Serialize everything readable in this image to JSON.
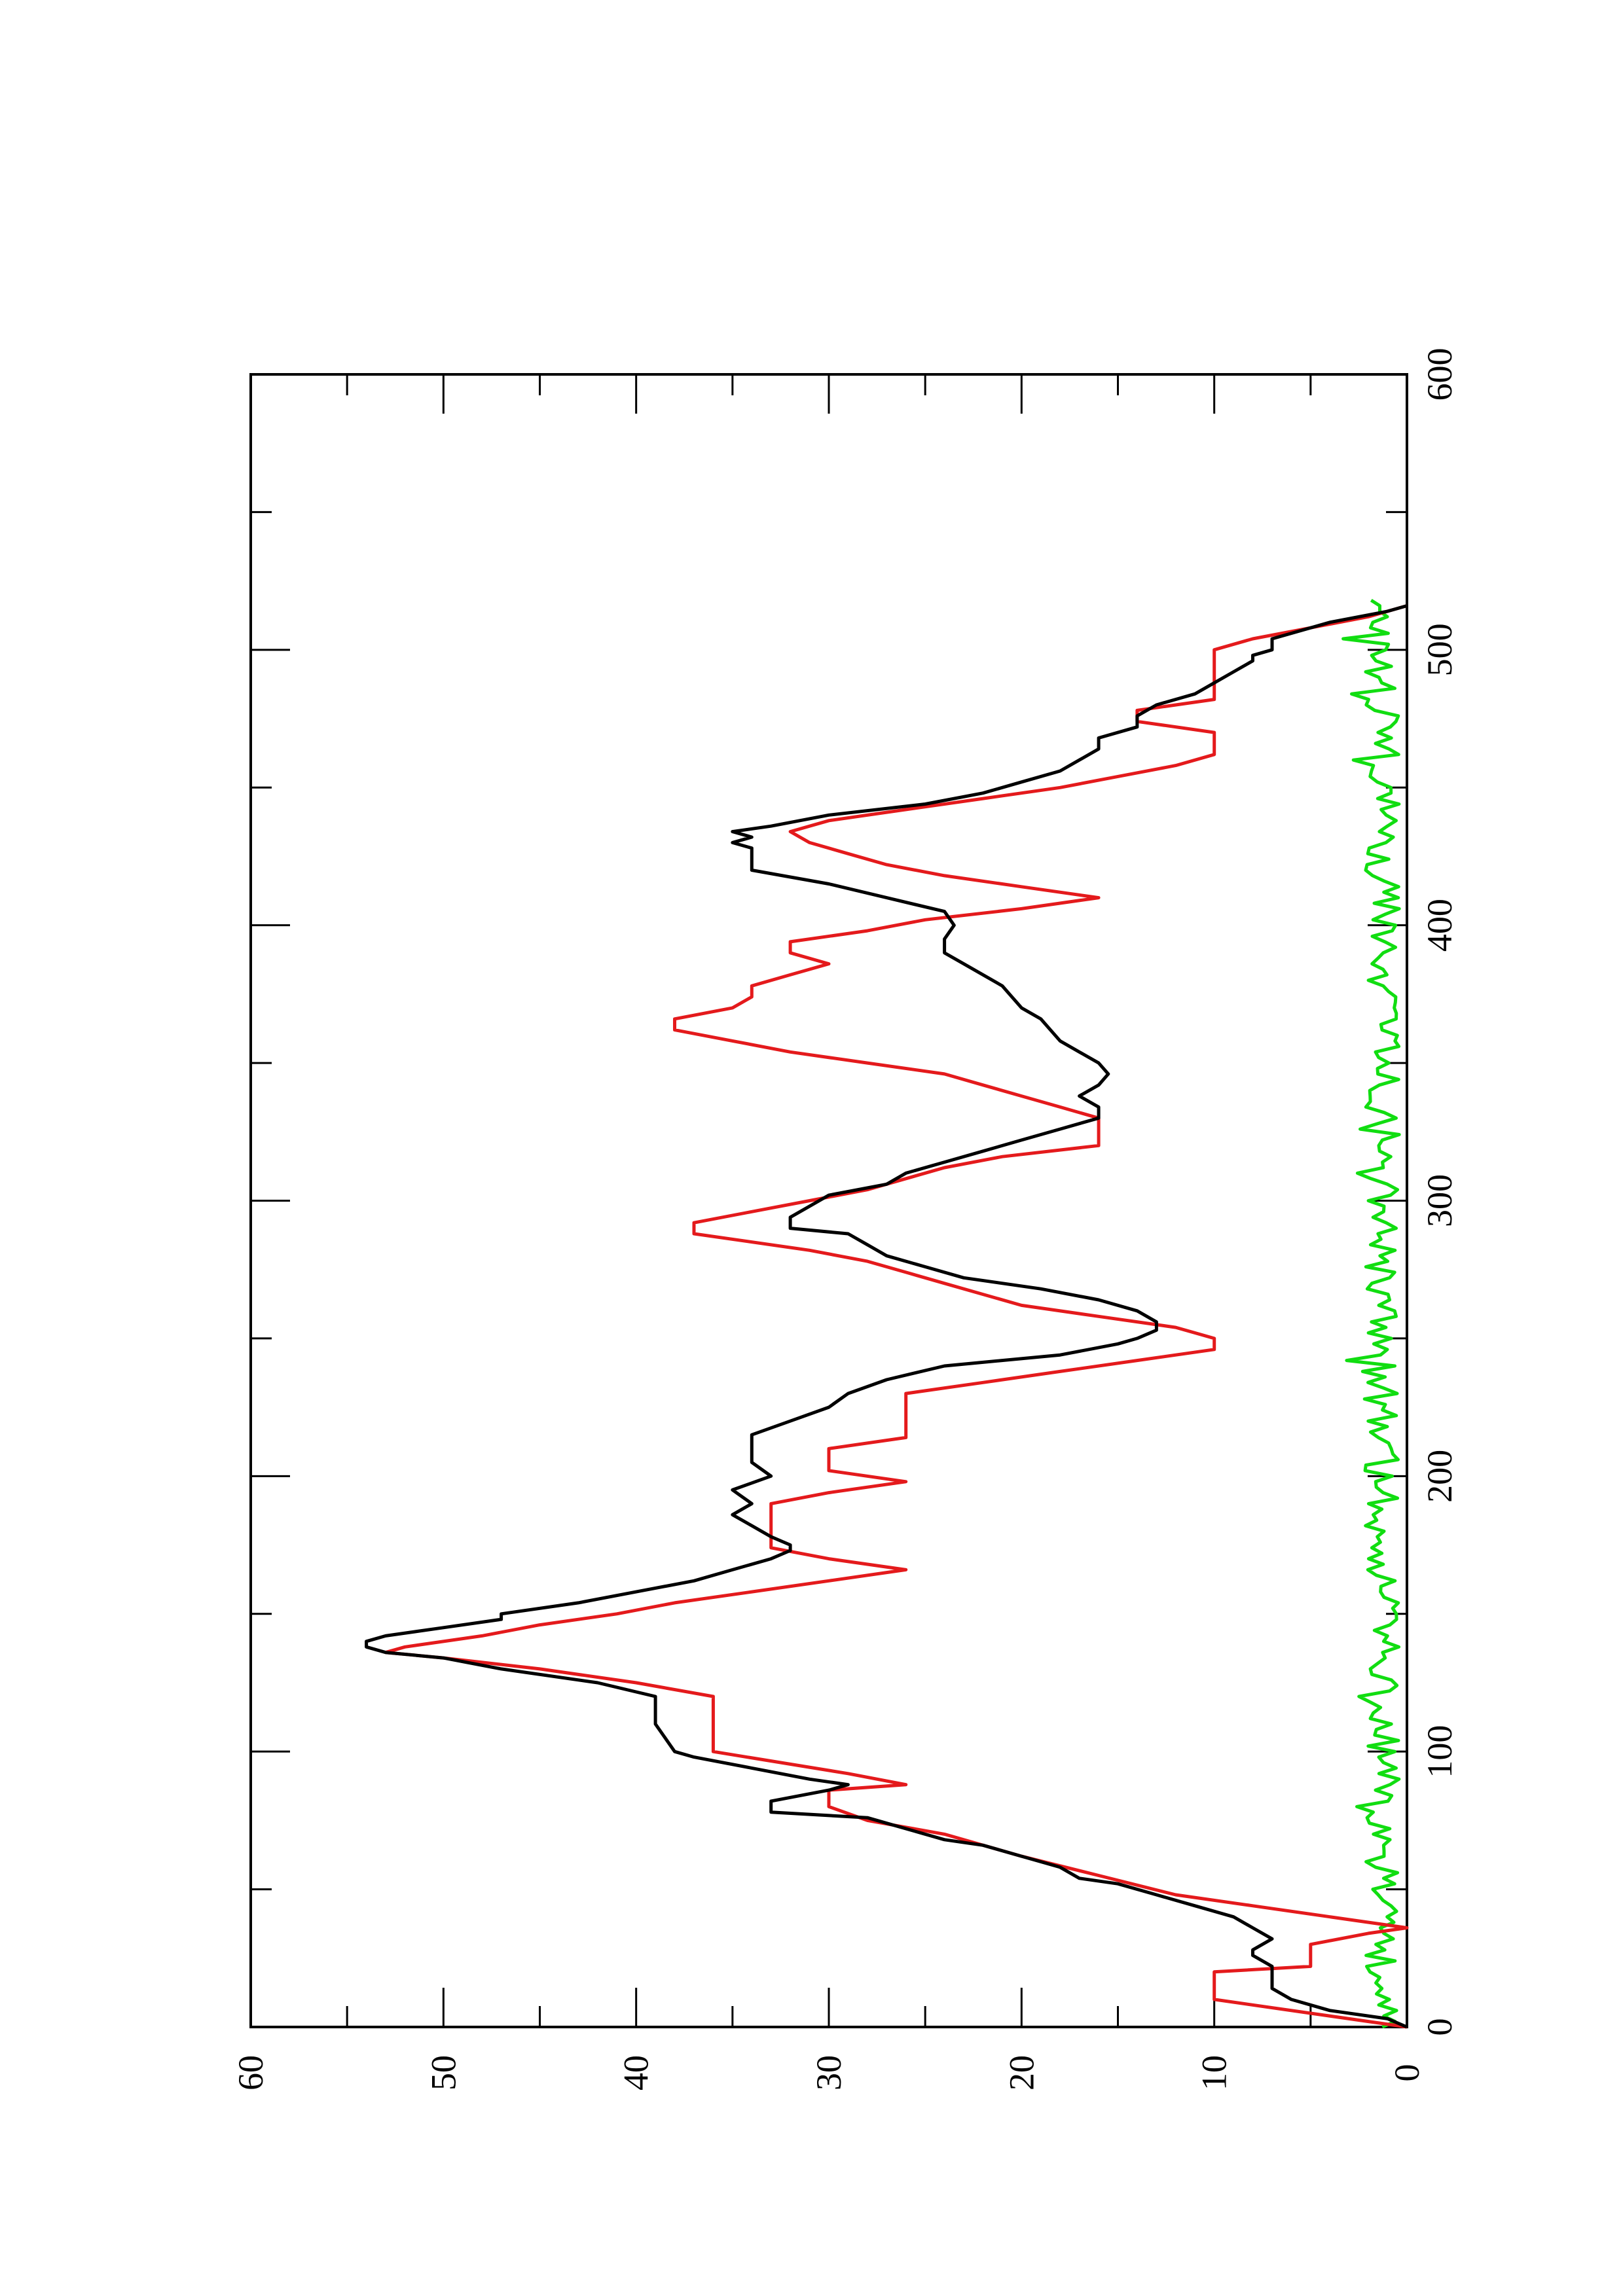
{
  "chart_data": {
    "type": "line",
    "orientation": "rotated-90-ccw",
    "xlabel": "",
    "ylabel": "",
    "xlim": [
      0,
      600
    ],
    "ylim": [
      0,
      60
    ],
    "x_ticks": [
      0,
      100,
      200,
      300,
      400,
      500,
      600
    ],
    "y_ticks": [
      0,
      10,
      20,
      30,
      40,
      50,
      60
    ],
    "grid": false,
    "legend": "none",
    "series": [
      {
        "color": "#000000",
        "points": [
          [
            0,
            0
          ],
          [
            3,
            1
          ],
          [
            6,
            4
          ],
          [
            10,
            6
          ],
          [
            14,
            7
          ],
          [
            18,
            7
          ],
          [
            22,
            7
          ],
          [
            26,
            8
          ],
          [
            28,
            8
          ],
          [
            32,
            7
          ],
          [
            36,
            8
          ],
          [
            40,
            9
          ],
          [
            44,
            11
          ],
          [
            48,
            13
          ],
          [
            52,
            15
          ],
          [
            54,
            17
          ],
          [
            58,
            18
          ],
          [
            62,
            20
          ],
          [
            66,
            22
          ],
          [
            68,
            24
          ],
          [
            72,
            26
          ],
          [
            76,
            28
          ],
          [
            78,
            33
          ],
          [
            82,
            33
          ],
          [
            86,
            30
          ],
          [
            88,
            29
          ],
          [
            90,
            31
          ],
          [
            94,
            34
          ],
          [
            98,
            37
          ],
          [
            100,
            38
          ],
          [
            105,
            38.5
          ],
          [
            110,
            39
          ],
          [
            115,
            39
          ],
          [
            120,
            39
          ],
          [
            125,
            42
          ],
          [
            130,
            47
          ],
          [
            134,
            50
          ],
          [
            136,
            53
          ],
          [
            138,
            54
          ],
          [
            140,
            54
          ],
          [
            142,
            53
          ],
          [
            145,
            50
          ],
          [
            148,
            47
          ],
          [
            150,
            47
          ],
          [
            154,
            43
          ],
          [
            158,
            40
          ],
          [
            162,
            37
          ],
          [
            166,
            35
          ],
          [
            170,
            33
          ],
          [
            173,
            32
          ],
          [
            175,
            32
          ],
          [
            178,
            33
          ],
          [
            182,
            34
          ],
          [
            186,
            35
          ],
          [
            190,
            34
          ],
          [
            195,
            35
          ],
          [
            200,
            33
          ],
          [
            205,
            34
          ],
          [
            210,
            34
          ],
          [
            215,
            34
          ],
          [
            220,
            32
          ],
          [
            225,
            30
          ],
          [
            230,
            29
          ],
          [
            235,
            27
          ],
          [
            240,
            24
          ],
          [
            244,
            18
          ],
          [
            248,
            15
          ],
          [
            250,
            14
          ],
          [
            253,
            13
          ],
          [
            256,
            13
          ],
          [
            260,
            14
          ],
          [
            264,
            16
          ],
          [
            268,
            19
          ],
          [
            272,
            23
          ],
          [
            276,
            25
          ],
          [
            280,
            27
          ],
          [
            284,
            28
          ],
          [
            288,
            29
          ],
          [
            290,
            32
          ],
          [
            294,
            32
          ],
          [
            298,
            31
          ],
          [
            302,
            30
          ],
          [
            306,
            27
          ],
          [
            310,
            26
          ],
          [
            314,
            24
          ],
          [
            318,
            22
          ],
          [
            322,
            20
          ],
          [
            326,
            18
          ],
          [
            330,
            16
          ],
          [
            334,
            16
          ],
          [
            338,
            17
          ],
          [
            342,
            16
          ],
          [
            346,
            15.5
          ],
          [
            350,
            16
          ],
          [
            354,
            17
          ],
          [
            358,
            18
          ],
          [
            362,
            18.5
          ],
          [
            366,
            19
          ],
          [
            370,
            20
          ],
          [
            374,
            20.5
          ],
          [
            378,
            21
          ],
          [
            382,
            22
          ],
          [
            386,
            23
          ],
          [
            390,
            24
          ],
          [
            395,
            24
          ],
          [
            400,
            23.5
          ],
          [
            405,
            24
          ],
          [
            410,
            27
          ],
          [
            415,
            30
          ],
          [
            420,
            34
          ],
          [
            424,
            34
          ],
          [
            428,
            34
          ],
          [
            430,
            35
          ],
          [
            432,
            34
          ],
          [
            434,
            35
          ],
          [
            436,
            33
          ],
          [
            440,
            30
          ],
          [
            444,
            25
          ],
          [
            448,
            22
          ],
          [
            452,
            20
          ],
          [
            456,
            18
          ],
          [
            460,
            17
          ],
          [
            464,
            16
          ],
          [
            468,
            16
          ],
          [
            472,
            14
          ],
          [
            476,
            14
          ],
          [
            480,
            13
          ],
          [
            484,
            11
          ],
          [
            488,
            10
          ],
          [
            492,
            9
          ],
          [
            496,
            8
          ],
          [
            498,
            8
          ],
          [
            500,
            7
          ],
          [
            504,
            7
          ],
          [
            506,
            6
          ],
          [
            510,
            4
          ],
          [
            514,
            1
          ],
          [
            516,
            0
          ]
        ]
      },
      {
        "color": "#e41a1c",
        "points": [
          [
            0,
            0
          ],
          [
            5,
            5
          ],
          [
            10,
            10
          ],
          [
            20,
            10
          ],
          [
            22,
            5
          ],
          [
            30,
            5
          ],
          [
            34,
            2
          ],
          [
            36,
            0
          ],
          [
            40,
            4
          ],
          [
            44,
            8
          ],
          [
            48,
            12
          ],
          [
            55,
            16
          ],
          [
            62,
            20
          ],
          [
            70,
            24
          ],
          [
            75,
            28
          ],
          [
            80,
            30
          ],
          [
            86,
            30
          ],
          [
            88,
            26
          ],
          [
            92,
            29
          ],
          [
            100,
            36
          ],
          [
            120,
            36
          ],
          [
            125,
            40
          ],
          [
            130,
            45
          ],
          [
            134,
            50
          ],
          [
            136,
            53
          ],
          [
            138,
            52
          ],
          [
            142,
            48
          ],
          [
            146,
            45
          ],
          [
            150,
            41
          ],
          [
            154,
            38
          ],
          [
            158,
            34
          ],
          [
            162,
            30
          ],
          [
            166,
            26
          ],
          [
            170,
            30
          ],
          [
            174,
            33
          ],
          [
            190,
            33
          ],
          [
            194,
            30
          ],
          [
            198,
            26
          ],
          [
            202,
            30
          ],
          [
            210,
            30
          ],
          [
            214,
            26
          ],
          [
            230,
            26
          ],
          [
            234,
            22
          ],
          [
            238,
            18
          ],
          [
            242,
            14
          ],
          [
            246,
            10
          ],
          [
            250,
            10
          ],
          [
            254,
            12
          ],
          [
            258,
            16
          ],
          [
            262,
            20
          ],
          [
            266,
            22
          ],
          [
            270,
            24
          ],
          [
            274,
            26
          ],
          [
            278,
            28
          ],
          [
            282,
            31
          ],
          [
            288,
            37
          ],
          [
            292,
            37
          ],
          [
            296,
            34
          ],
          [
            300,
            31
          ],
          [
            304,
            28
          ],
          [
            308,
            26
          ],
          [
            312,
            24
          ],
          [
            316,
            21
          ],
          [
            320,
            16
          ],
          [
            330,
            16
          ],
          [
            334,
            18
          ],
          [
            338,
            20
          ],
          [
            342,
            22
          ],
          [
            346,
            24
          ],
          [
            350,
            28
          ],
          [
            354,
            32
          ],
          [
            358,
            35
          ],
          [
            362,
            38
          ],
          [
            366,
            38
          ],
          [
            370,
            35
          ],
          [
            374,
            34
          ],
          [
            378,
            34
          ],
          [
            382,
            32
          ],
          [
            386,
            30
          ],
          [
            390,
            32
          ],
          [
            394,
            32
          ],
          [
            398,
            28
          ],
          [
            402,
            25
          ],
          [
            406,
            20
          ],
          [
            410,
            16
          ],
          [
            414,
            20
          ],
          [
            418,
            24
          ],
          [
            422,
            27
          ],
          [
            426,
            29
          ],
          [
            430,
            31
          ],
          [
            434,
            32
          ],
          [
            438,
            30
          ],
          [
            442,
            26
          ],
          [
            446,
            22
          ],
          [
            450,
            18
          ],
          [
            454,
            15
          ],
          [
            458,
            12
          ],
          [
            462,
            10
          ],
          [
            470,
            10
          ],
          [
            474,
            14
          ],
          [
            478,
            14
          ],
          [
            482,
            10
          ],
          [
            500,
            10
          ],
          [
            504,
            8
          ],
          [
            508,
            5
          ],
          [
            512,
            2
          ],
          [
            516,
            0
          ]
        ]
      },
      {
        "color": "#11dd11",
        "points": []
      }
    ]
  }
}
